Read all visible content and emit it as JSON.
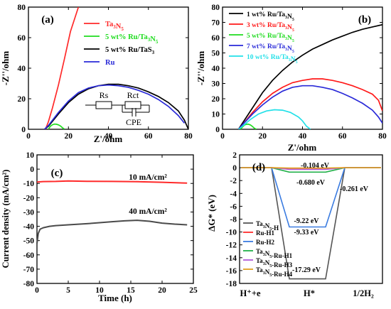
{
  "chart_data": [
    {
      "panel_label": "(a)",
      "type": "line",
      "xlabel": "Z'/ohm",
      "ylabel": "-Z''/ohm",
      "xlim": [
        0,
        80
      ],
      "ylim": [
        0,
        80
      ],
      "xticks": [
        "0",
        "20",
        "40",
        "60",
        "80"
      ],
      "yticks": [
        "0",
        "20",
        "40",
        "60",
        "80"
      ],
      "legend_position": "top-right",
      "series": [
        {
          "name": "Ta3N5",
          "color": "#ff2a2a",
          "x": [
            8.5,
            10,
            12,
            15,
            18,
            21,
            24,
            25
          ],
          "y": [
            0,
            5,
            14,
            29,
            46,
            64,
            76,
            80
          ]
        },
        {
          "name": "5 wt% Ru/Ta3N5",
          "color": "#1fdc1f",
          "x": [
            10,
            11,
            12,
            13,
            14,
            15,
            16,
            17,
            18
          ],
          "y": [
            0,
            2,
            3,
            3.4,
            3.3,
            2.9,
            2.2,
            1,
            0.1
          ]
        },
        {
          "name": "5 wt% Ru/TaS3",
          "color": "#000000",
          "x": [
            8,
            10,
            15,
            20,
            25,
            30,
            35,
            40,
            45,
            50,
            55,
            60,
            65,
            70,
            75,
            78,
            80
          ],
          "y": [
            0,
            2,
            10,
            17.5,
            23,
            26.5,
            28.5,
            29.5,
            29.5,
            28.5,
            27,
            24.5,
            21.5,
            17.5,
            12,
            6,
            0
          ]
        },
        {
          "name": "Ru",
          "color": "#2a2ad8",
          "x": [
            8,
            10,
            15,
            20,
            25,
            30,
            35,
            40,
            45,
            50,
            55,
            60,
            65,
            70,
            75,
            78
          ],
          "y": [
            0,
            2.5,
            11,
            18.5,
            24,
            27,
            28.5,
            29,
            28.5,
            27.5,
            25.5,
            23,
            19.5,
            15,
            9,
            4
          ]
        }
      ],
      "annotations": [
        "Rs",
        "Rct",
        "CPE"
      ]
    },
    {
      "panel_label": "(b)",
      "type": "line",
      "xlabel": "Z'/ohm",
      "ylabel": "-Z''/ohm",
      "xlim": [
        0,
        80
      ],
      "ylim": [
        0,
        80
      ],
      "xticks": [
        "0",
        "20",
        "40",
        "60",
        "80"
      ],
      "yticks": [
        "0",
        "10",
        "20",
        "30",
        "40",
        "50",
        "60",
        "70",
        "80"
      ],
      "legend_position": "top-left",
      "series": [
        {
          "name": "1 wt% Ru/Ta3N5",
          "color": "#000000",
          "x": [
            8,
            10,
            15,
            20,
            25,
            30,
            35,
            40,
            45,
            50,
            55,
            60,
            65,
            70,
            75,
            80
          ],
          "y": [
            0,
            4,
            14,
            24,
            32,
            38.5,
            44,
            48.5,
            52.5,
            55.5,
            58.5,
            61,
            63.5,
            65.5,
            67,
            68.5
          ]
        },
        {
          "name": "3 wt% Ru/Ta3N5",
          "color": "#ff1a1a",
          "x": [
            8,
            10,
            15,
            20,
            25,
            30,
            35,
            40,
            45,
            50,
            55,
            60,
            65,
            70,
            75,
            78,
            80
          ],
          "y": [
            0,
            3,
            11,
            18,
            23.5,
            27.5,
            30.5,
            32,
            33,
            33,
            32,
            30.5,
            28.5,
            26,
            23,
            19,
            12
          ]
        },
        {
          "name": "5 wt% Ru/Ta3N5",
          "color": "#1fdc1f",
          "x": [
            9,
            10,
            11,
            12,
            13,
            14,
            15,
            16,
            17
          ],
          "y": [
            0,
            1.5,
            2.8,
            3.3,
            3.3,
            2.8,
            1.8,
            0.6,
            0
          ]
        },
        {
          "name": "7 wt% Ru/Ta3N5",
          "color": "#2a2ad8",
          "x": [
            8,
            10,
            15,
            20,
            25,
            30,
            35,
            40,
            45,
            50,
            55,
            60,
            65,
            70,
            75,
            78,
            80
          ],
          "y": [
            0,
            3,
            10,
            16,
            21,
            25,
            27.5,
            28.5,
            28.5,
            27.5,
            26,
            23.5,
            20.5,
            17,
            12.5,
            8,
            4
          ]
        },
        {
          "name": "10 wt% Ru/Ta3N5",
          "color": "#22e0e8",
          "x": [
            8,
            10,
            14,
            18,
            22,
            26,
            30,
            34,
            38,
            40,
            42,
            44
          ],
          "y": [
            0,
            2,
            6.5,
            10,
            12,
            12.8,
            12.5,
            11,
            8,
            5.5,
            2,
            0
          ]
        }
      ]
    },
    {
      "panel_label": "(c)",
      "type": "line",
      "xlabel": "Time (h)",
      "ylabel": "Current density (mA/cm²)",
      "xlim": [
        0,
        25
      ],
      "ylim": [
        -80,
        10
      ],
      "xticks": [
        "0",
        "5",
        "10",
        "15",
        "20",
        "25"
      ],
      "yticks": [
        "10",
        "0",
        "-10",
        "-20",
        "-30",
        "-40",
        "-50",
        "-60",
        "-70",
        "-80"
      ],
      "series": [
        {
          "name": "10 mA/cm²",
          "color": "#ff2a2a",
          "x": [
            0,
            1,
            3,
            5,
            8,
            12,
            16,
            20,
            24
          ],
          "y": [
            -9,
            -8.7,
            -8.6,
            -8.3,
            -8.5,
            -8.6,
            -8.8,
            -9.2,
            -9.8
          ]
        },
        {
          "name": "40 mA/cm²",
          "color": "#4a4a4a",
          "x": [
            0,
            0.2,
            0.5,
            1,
            2,
            3,
            5,
            8,
            10,
            12,
            14,
            16,
            18,
            20,
            22,
            24
          ],
          "y": [
            -52,
            -45,
            -42,
            -41,
            -40,
            -39.5,
            -39,
            -38.2,
            -37.5,
            -36.8,
            -36.2,
            -35.8,
            -36.5,
            -37.8,
            -38.5,
            -39
          ]
        }
      ]
    },
    {
      "panel_label": "(d)",
      "type": "line",
      "xlabel": "",
      "ylabel": "ΔG* (eV)",
      "ylim": [
        -18,
        2
      ],
      "categories": [
        "H⁺+e",
        "H*",
        "1/2H₂"
      ],
      "yticks": [
        "2",
        "0",
        "-2",
        "-4",
        "-6",
        "-8",
        "-10",
        "-12",
        "-14",
        "-16",
        "-18"
      ],
      "legend_position": "bottom-left",
      "series": [
        {
          "name": "Ta3N5-H",
          "color": "#555555",
          "values": [
            0,
            -17.29,
            0
          ]
        },
        {
          "name": "Ru-H1",
          "color": "#ff2a2a",
          "values": [
            0,
            -0.104,
            0
          ]
        },
        {
          "name": "Ru-H2",
          "color": "#3a7be0",
          "values": [
            0,
            -9.22,
            0
          ]
        },
        {
          "name": "Ta3N5-Ru-H1",
          "color": "#22b04a",
          "values": [
            0,
            -0.68,
            0
          ]
        },
        {
          "name": "Ta3N5-Ru-H3",
          "color": "#b05ad8",
          "values": [
            0,
            -0.261,
            0
          ]
        },
        {
          "name": "Ta3N5-Ru-H4",
          "color": "#e0a020",
          "values": [
            0,
            -0.05,
            0
          ]
        }
      ],
      "labels": [
        "-0.104 eV",
        "-0.680 eV",
        "-0.261 eV",
        "-9.22 eV",
        "-9.33 eV",
        "-17.29 eV"
      ]
    }
  ]
}
